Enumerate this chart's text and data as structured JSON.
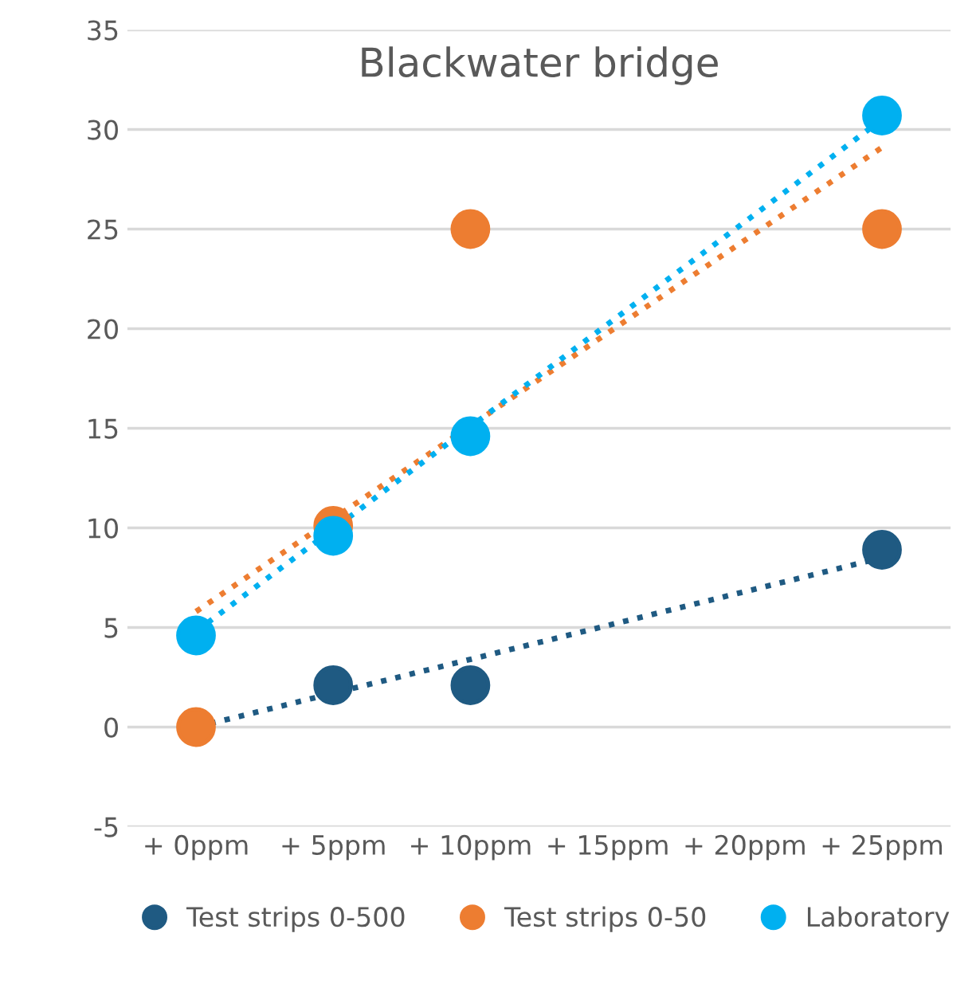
{
  "chart_data": {
    "type": "scatter",
    "title": "Blackwater bridge",
    "categories": [
      "+ 0ppm",
      "+ 5ppm",
      "+ 10ppm",
      "+ 15ppm",
      "+ 20ppm",
      "+ 25ppm"
    ],
    "series": [
      {
        "name": "Test strips 0-500",
        "color": "#1f5a82",
        "values": [
          null,
          2.1,
          2.1,
          null,
          null,
          8.9
        ]
      },
      {
        "name": "Test strips 0-50",
        "color": "#ed7d31",
        "values": [
          0,
          10.1,
          25,
          null,
          null,
          25
        ]
      },
      {
        "name": "Laboratory",
        "color": "#00b0f0",
        "values": [
          4.6,
          9.6,
          14.6,
          null,
          null,
          30.7
        ]
      },
      {
        "type": "line",
        "color": "#1f5a82",
        "x": [
          "+ 0ppm",
          "+ 25ppm"
        ],
        "values": [
          0,
          8.5
        ],
        "line_style": "dotted",
        "marker": "none"
      },
      {
        "type": "line",
        "color": "#ed7d31",
        "x": [
          "+ 0ppm",
          "+ 25ppm"
        ],
        "values": [
          5.8,
          29.1
        ],
        "line_style": "dotted",
        "marker": "none"
      },
      {
        "type": "line",
        "color": "#00b0f0",
        "x": [
          "+ 0ppm",
          "+ 25ppm"
        ],
        "values": [
          4.8,
          30.5
        ],
        "line_style": "dotted",
        "marker": "none"
      }
    ],
    "marker": "circle",
    "ylim": [
      -5,
      35
    ],
    "yticks": [
      -5,
      0,
      5,
      10,
      15,
      20,
      25,
      30,
      35
    ],
    "grid": "y",
    "legend": "bottom"
  }
}
